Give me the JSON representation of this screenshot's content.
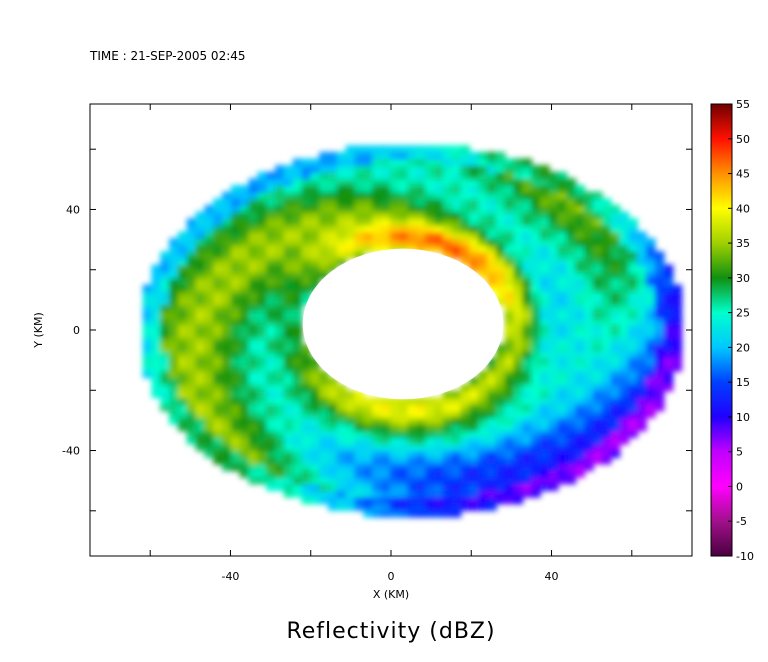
{
  "chart_data": {
    "type": "heatmap",
    "header": "TIME : 21-SEP-2005 02:45",
    "title": "Reflectivity (dBZ)",
    "xlabel": "X (KM)",
    "ylabel": "Y (KM)",
    "xlim": [
      -75,
      75
    ],
    "ylim": [
      -75,
      75
    ],
    "x_ticks": [
      -40,
      0,
      40
    ],
    "y_ticks": [
      -40,
      0,
      40
    ],
    "grid": false,
    "colorbar": {
      "label_values": [
        55,
        50,
        45,
        40,
        35,
        30,
        25,
        20,
        15,
        10,
        5,
        0,
        -5,
        -10
      ],
      "range": [
        -10,
        55
      ],
      "stops": [
        {
          "value": -10,
          "color": "#4a0040"
        },
        {
          "value": -5,
          "color": "#a0108a"
        },
        {
          "value": 0,
          "color": "#ff00ff"
        },
        {
          "value": 5,
          "color": "#c000ff"
        },
        {
          "value": 10,
          "color": "#2000ff"
        },
        {
          "value": 15,
          "color": "#0040ff"
        },
        {
          "value": 20,
          "color": "#00c8ff"
        },
        {
          "value": 25,
          "color": "#00ffcc"
        },
        {
          "value": 30,
          "color": "#109010"
        },
        {
          "value": 35,
          "color": "#a0d000"
        },
        {
          "value": 40,
          "color": "#ffff00"
        },
        {
          "value": 45,
          "color": "#ff9000"
        },
        {
          "value": 50,
          "color": "#ff1000"
        },
        {
          "value": 55,
          "color": "#700000"
        }
      ]
    },
    "field_description": {
      "echo_outer_radius_km": 68,
      "eye_radius_km": 25,
      "eye_center": [
        3,
        2
      ],
      "eyewall_peak_dbz": 48
    }
  }
}
